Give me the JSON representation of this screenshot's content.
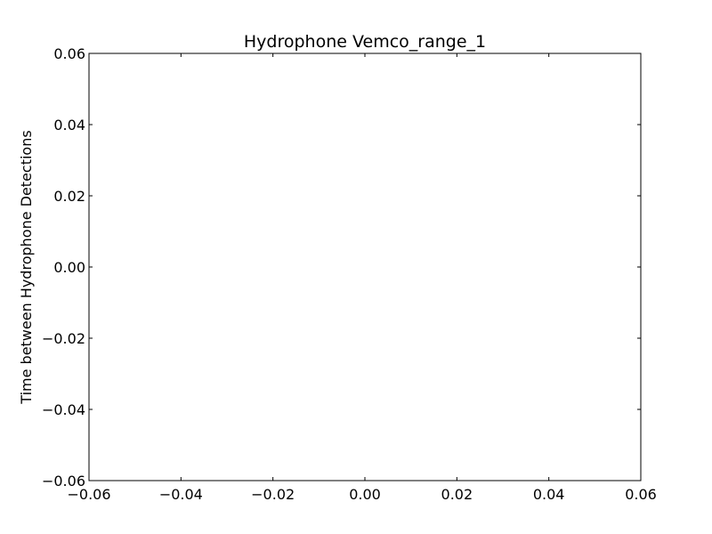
{
  "chart_data": {
    "type": "scatter",
    "title": "Hydrophone Vemco_range_1",
    "xlabel": "",
    "ylabel": "Time between Hydrophone Detections",
    "xlim": [
      -0.06,
      0.06
    ],
    "ylim": [
      -0.06,
      0.06
    ],
    "x_ticks": [
      -0.06,
      -0.04,
      -0.02,
      0.0,
      0.02,
      0.04,
      0.06
    ],
    "y_ticks": [
      -0.06,
      -0.04,
      -0.02,
      0.0,
      0.02,
      0.04,
      0.06
    ],
    "x_tick_labels": [
      "−0.06",
      "−0.04",
      "−0.02",
      "0.00",
      "0.02",
      "0.04",
      "0.06"
    ],
    "y_tick_labels": [
      "−0.06",
      "−0.04",
      "−0.02",
      "0.00",
      "0.02",
      "0.04",
      "0.06"
    ],
    "series": [
      {
        "x": [],
        "y": []
      }
    ],
    "grid": false
  }
}
